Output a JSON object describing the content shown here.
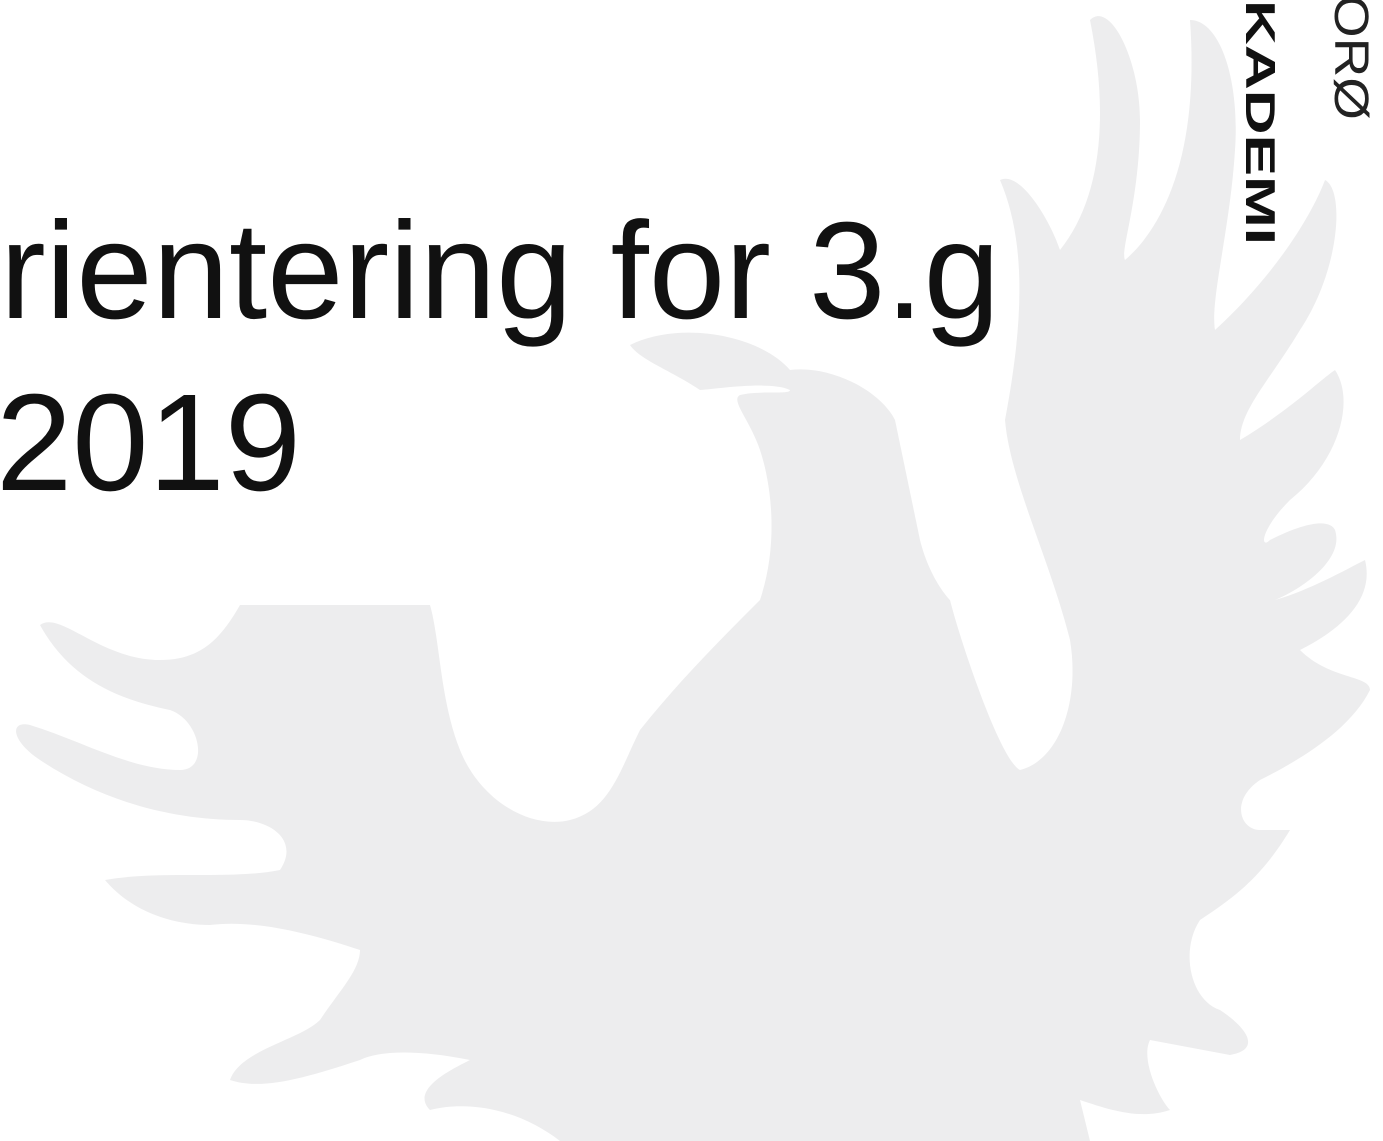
{
  "slide": {
    "title_lines": [
      "rientering for 3.g",
      "2019"
    ],
    "logo": {
      "line1": "ORØ",
      "line2": "KADEMI"
    }
  }
}
